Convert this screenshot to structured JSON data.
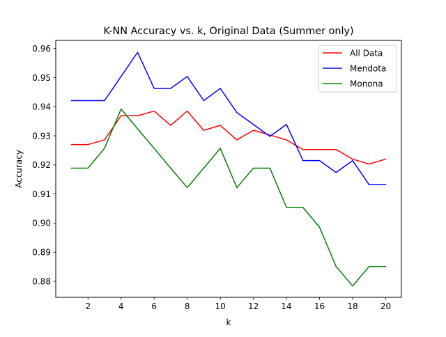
{
  "chart_data": {
    "type": "line",
    "title": "K-NN Accuracy vs. k, Original Data (Summer only)",
    "xlabel": "k",
    "ylabel": "Accuracy",
    "xlim": [
      0.05,
      20.95
    ],
    "ylim": [
      0.8745,
      0.9628
    ],
    "xticks": [
      2,
      4,
      6,
      8,
      10,
      12,
      14,
      16,
      18,
      20
    ],
    "xtick_labels": [
      "2",
      "4",
      "6",
      "8",
      "10",
      "12",
      "14",
      "16",
      "18",
      "20"
    ],
    "yticks": [
      0.88,
      0.89,
      0.9,
      0.91,
      0.92,
      0.93,
      0.94,
      0.95,
      0.96
    ],
    "ytick_labels": [
      "0.88",
      "0.89",
      "0.90",
      "0.91",
      "0.92",
      "0.93",
      "0.94",
      "0.95",
      "0.96"
    ],
    "grid": false,
    "legend_position": "top-right",
    "x": [
      1,
      2,
      3,
      4,
      5,
      6,
      7,
      8,
      9,
      10,
      11,
      12,
      13,
      14,
      15,
      16,
      17,
      18,
      19,
      20
    ],
    "series": [
      {
        "name": "All Data",
        "color": "#ff0000",
        "values": [
          0.927,
          0.927,
          0.9286,
          0.9369,
          0.9369,
          0.9385,
          0.9336,
          0.9385,
          0.9319,
          0.9336,
          0.9286,
          0.9319,
          0.9303,
          0.9286,
          0.9253,
          0.9253,
          0.9253,
          0.922,
          0.9203,
          0.922
        ]
      },
      {
        "name": "Mendota",
        "color": "#0000ff",
        "values": [
          0.9421,
          0.9421,
          0.9421,
          0.9504,
          0.9587,
          0.9463,
          0.9463,
          0.9504,
          0.9421,
          0.9463,
          0.938,
          0.9339,
          0.9298,
          0.9339,
          0.9215,
          0.9215,
          0.9174,
          0.9215,
          0.9132,
          0.9132
        ]
      },
      {
        "name": "Monona",
        "color": "#008000",
        "values": [
          0.9189,
          0.9189,
          0.9257,
          0.9392,
          0.9324,
          0.9257,
          0.9189,
          0.9122,
          0.9189,
          0.9257,
          0.9122,
          0.9189,
          0.9189,
          0.9054,
          0.9054,
          0.8986,
          0.8851,
          0.8784,
          0.8851,
          0.8851
        ]
      }
    ]
  }
}
